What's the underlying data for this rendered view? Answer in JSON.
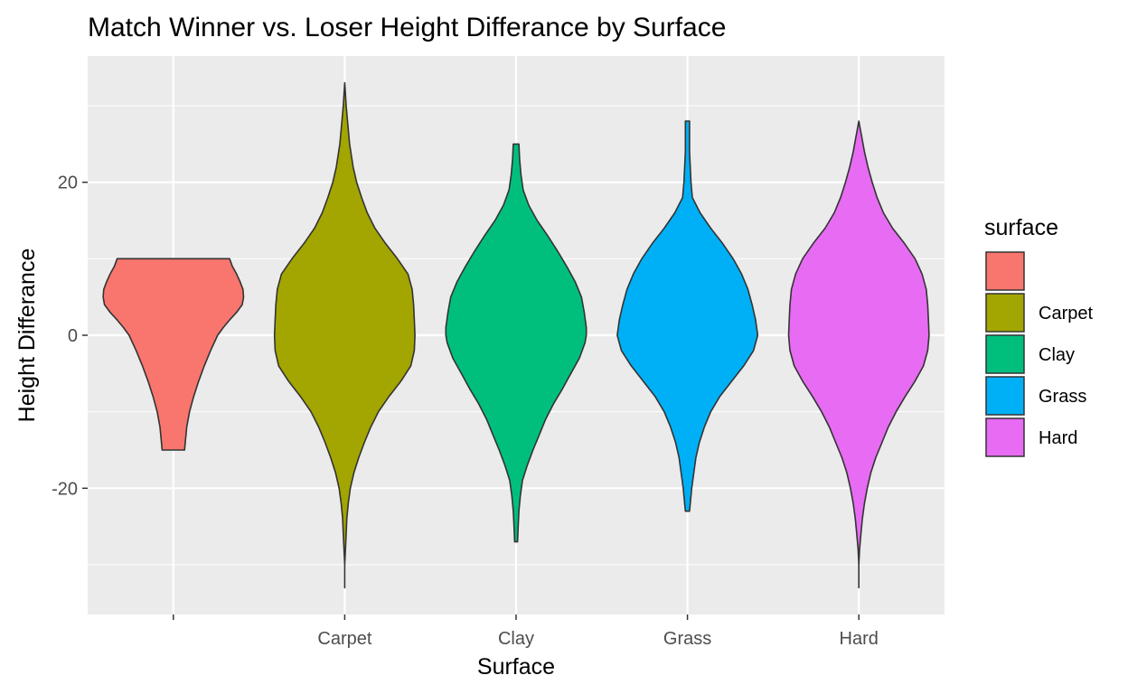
{
  "chart_data": {
    "type": "violin",
    "title": "Match Winner vs. Loser Height Differance by Surface",
    "xlabel": "Surface",
    "ylabel": "Height Differance",
    "categories": [
      "",
      "Carpet",
      "Clay",
      "Grass",
      "Hard"
    ],
    "ylim": [
      -36.5,
      36.5
    ],
    "yticks": [
      -20,
      0,
      20
    ],
    "ytick_labels": [
      "-20",
      "0",
      "20"
    ],
    "grid": true,
    "legend": {
      "title": "surface",
      "position": "right",
      "entries": [
        "",
        "Carpet",
        "Clay",
        "Grass",
        "Hard"
      ]
    },
    "series": [
      {
        "category": "",
        "color": "#F8766D",
        "width_scale": 0.82,
        "profile": [
          [
            10,
            0.8
          ],
          [
            9,
            0.84
          ],
          [
            8,
            0.9
          ],
          [
            7,
            0.95
          ],
          [
            6,
            0.99
          ],
          [
            5,
            1.0
          ],
          [
            4,
            0.98
          ],
          [
            3,
            0.9
          ],
          [
            2,
            0.8
          ],
          [
            1,
            0.71
          ],
          [
            0,
            0.63
          ],
          [
            -2,
            0.53
          ],
          [
            -4,
            0.44
          ],
          [
            -6,
            0.36
          ],
          [
            -8,
            0.29
          ],
          [
            -10,
            0.23
          ],
          [
            -12,
            0.19
          ],
          [
            -13,
            0.18
          ],
          [
            -14,
            0.17
          ],
          [
            -15,
            0.16
          ]
        ]
      },
      {
        "category": "Carpet",
        "color": "#A3A500",
        "width_scale": 0.82,
        "profile": [
          [
            33,
            0.0
          ],
          [
            30,
            0.02
          ],
          [
            28,
            0.04
          ],
          [
            25,
            0.07
          ],
          [
            22,
            0.12
          ],
          [
            20,
            0.17
          ],
          [
            18,
            0.24
          ],
          [
            16,
            0.32
          ],
          [
            14,
            0.43
          ],
          [
            12,
            0.58
          ],
          [
            10,
            0.75
          ],
          [
            8,
            0.9
          ],
          [
            6,
            0.96
          ],
          [
            4,
            0.98
          ],
          [
            2,
            0.99
          ],
          [
            0,
            1.0
          ],
          [
            -2,
            0.99
          ],
          [
            -4,
            0.94
          ],
          [
            -6,
            0.8
          ],
          [
            -8,
            0.63
          ],
          [
            -10,
            0.48
          ],
          [
            -12,
            0.37
          ],
          [
            -14,
            0.28
          ],
          [
            -16,
            0.2
          ],
          [
            -18,
            0.13
          ],
          [
            -20,
            0.08
          ],
          [
            -22,
            0.05
          ],
          [
            -24,
            0.03
          ],
          [
            -26,
            0.02
          ],
          [
            -28,
            0.01
          ],
          [
            -30,
            0.0
          ],
          [
            -33,
            0.0
          ]
        ]
      },
      {
        "category": "Clay",
        "color": "#00BF7D",
        "width_scale": 0.82,
        "profile": [
          [
            25,
            0.04
          ],
          [
            23,
            0.05
          ],
          [
            21,
            0.07
          ],
          [
            19,
            0.1
          ],
          [
            17,
            0.18
          ],
          [
            15,
            0.3
          ],
          [
            13,
            0.45
          ],
          [
            11,
            0.59
          ],
          [
            9,
            0.72
          ],
          [
            7,
            0.84
          ],
          [
            5,
            0.93
          ],
          [
            3,
            0.97
          ],
          [
            1,
            1.0
          ],
          [
            0,
            1.0
          ],
          [
            -1,
            0.98
          ],
          [
            -3,
            0.9
          ],
          [
            -5,
            0.78
          ],
          [
            -7,
            0.66
          ],
          [
            -9,
            0.53
          ],
          [
            -11,
            0.42
          ],
          [
            -13,
            0.33
          ],
          [
            -15,
            0.24
          ],
          [
            -17,
            0.16
          ],
          [
            -19,
            0.09
          ],
          [
            -21,
            0.06
          ],
          [
            -23,
            0.04
          ],
          [
            -25,
            0.03
          ],
          [
            -27,
            0.02
          ]
        ]
      },
      {
        "category": "Grass",
        "color": "#00B0F6",
        "width_scale": 0.82,
        "profile": [
          [
            28,
            0.03
          ],
          [
            26,
            0.03
          ],
          [
            24,
            0.03
          ],
          [
            22,
            0.04
          ],
          [
            20,
            0.05
          ],
          [
            18,
            0.07
          ],
          [
            16,
            0.18
          ],
          [
            14,
            0.33
          ],
          [
            12,
            0.5
          ],
          [
            10,
            0.65
          ],
          [
            8,
            0.77
          ],
          [
            6,
            0.86
          ],
          [
            4,
            0.92
          ],
          [
            2,
            0.97
          ],
          [
            0,
            1.0
          ],
          [
            -2,
            0.94
          ],
          [
            -4,
            0.8
          ],
          [
            -6,
            0.63
          ],
          [
            -8,
            0.46
          ],
          [
            -10,
            0.33
          ],
          [
            -12,
            0.24
          ],
          [
            -14,
            0.17
          ],
          [
            -16,
            0.12
          ],
          [
            -18,
            0.09
          ],
          [
            -20,
            0.06
          ],
          [
            -22,
            0.04
          ],
          [
            -23,
            0.03
          ]
        ]
      },
      {
        "category": "Hard",
        "color": "#E76BF3",
        "width_scale": 0.82,
        "profile": [
          [
            28,
            0.0
          ],
          [
            26,
            0.04
          ],
          [
            24,
            0.08
          ],
          [
            22,
            0.13
          ],
          [
            20,
            0.19
          ],
          [
            18,
            0.26
          ],
          [
            16,
            0.35
          ],
          [
            14,
            0.48
          ],
          [
            12,
            0.65
          ],
          [
            10,
            0.8
          ],
          [
            8,
            0.9
          ],
          [
            6,
            0.96
          ],
          [
            4,
            0.98
          ],
          [
            2,
            0.99
          ],
          [
            0,
            1.0
          ],
          [
            -2,
            0.98
          ],
          [
            -4,
            0.92
          ],
          [
            -6,
            0.8
          ],
          [
            -8,
            0.66
          ],
          [
            -10,
            0.53
          ],
          [
            -12,
            0.42
          ],
          [
            -14,
            0.33
          ],
          [
            -16,
            0.24
          ],
          [
            -18,
            0.17
          ],
          [
            -20,
            0.12
          ],
          [
            -22,
            0.08
          ],
          [
            -24,
            0.05
          ],
          [
            -26,
            0.03
          ],
          [
            -28,
            0.01
          ],
          [
            -30,
            0.0
          ],
          [
            -33,
            0.0
          ]
        ]
      }
    ]
  }
}
